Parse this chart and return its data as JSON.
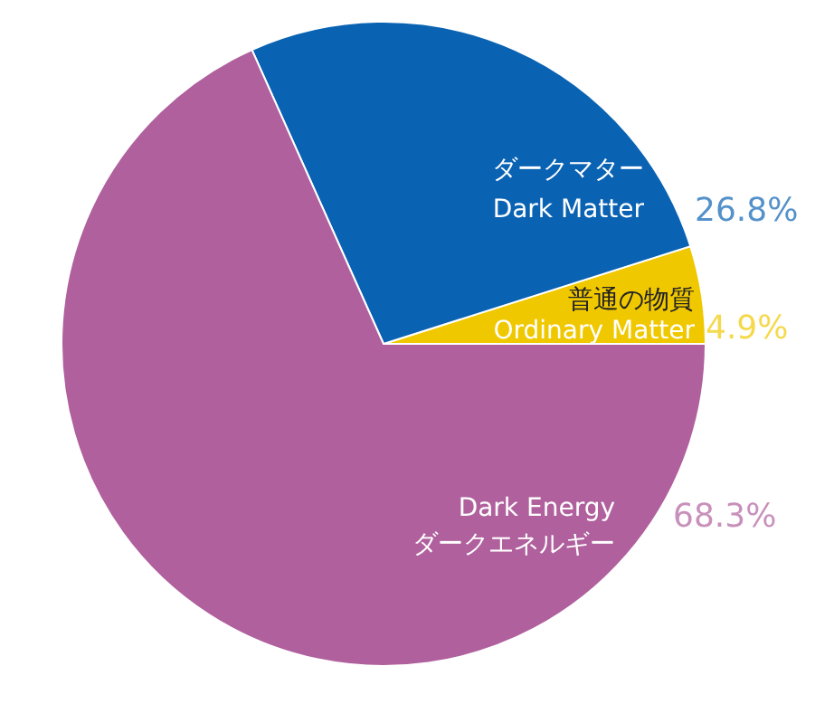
{
  "chart_data": {
    "type": "pie",
    "categories": [
      "普通の物質\nOrdinary Matter",
      "ダークマター\nDark Matter",
      "Dark Energy\nダークエネルギー"
    ],
    "values": [
      4.9,
      26.8,
      68.3
    ],
    "value_labels": [
      "4.9%",
      "26.8%",
      "68.3%"
    ],
    "colors": [
      "#f0c800",
      "#0a62b3",
      "#b0609d"
    ]
  }
}
